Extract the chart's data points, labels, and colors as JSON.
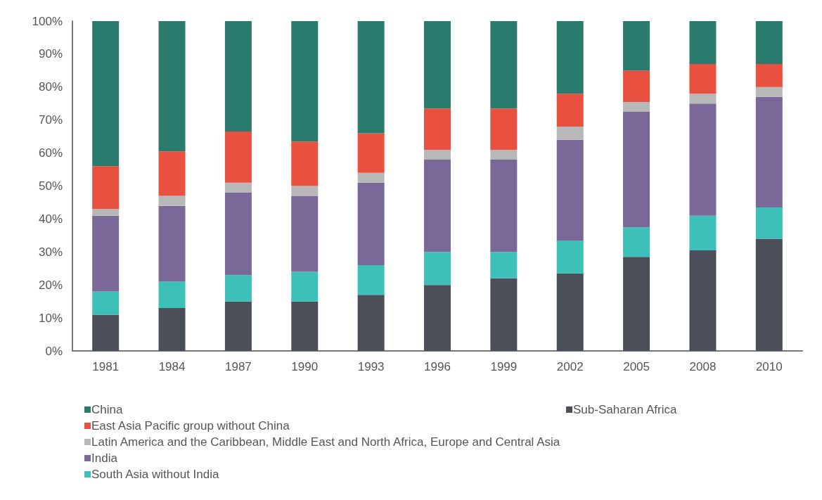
{
  "chart_data": {
    "type": "bar",
    "stacked": true,
    "categories": [
      "1981",
      "1984",
      "1987",
      "1990",
      "1993",
      "1996",
      "1999",
      "2002",
      "2005",
      "2008",
      "2010"
    ],
    "series": [
      {
        "name": "Sub-Saharan Africa",
        "color": "#4a4f5a",
        "values": [
          11,
          13,
          15,
          15,
          17,
          20,
          22,
          23.5,
          28.5,
          30.5,
          34
        ]
      },
      {
        "name": "South Asia without India",
        "color": "#3cc0b8",
        "values": [
          7,
          8,
          8,
          9,
          9,
          10,
          8,
          10,
          9,
          10.5,
          9.5
        ]
      },
      {
        "name": "India",
        "color": "#7a6899",
        "values": [
          23,
          23,
          25,
          23,
          25,
          28,
          28,
          30.5,
          35,
          34,
          33.5
        ]
      },
      {
        "name": "Latin America and the Caribbean, Middle East and North Africa, Europe and Central Asia",
        "color": "#b8b8b8",
        "values": [
          2,
          3,
          3,
          3,
          3,
          3,
          3,
          4,
          3,
          3,
          3
        ]
      },
      {
        "name": "East Asia Pacific group without China",
        "color": "#e8503f",
        "values": [
          13,
          13.5,
          15.5,
          13.5,
          12,
          12.5,
          12.5,
          10,
          9.5,
          9,
          7
        ]
      },
      {
        "name": "China",
        "color": "#2a7a6e",
        "values": [
          44,
          39.5,
          33.5,
          36.5,
          34,
          26.5,
          26.5,
          22,
          15,
          13,
          13
        ]
      }
    ],
    "ylim": [
      0,
      100
    ],
    "yticks": [
      {
        "value": 0,
        "label": "0%"
      },
      {
        "value": 10,
        "label": "10%"
      },
      {
        "value": 20,
        "label": "20%"
      },
      {
        "value": 30,
        "label": "30%"
      },
      {
        "value": 40,
        "label": "40%"
      },
      {
        "value": 50,
        "label": "50%"
      },
      {
        "value": 60,
        "label": "60%"
      },
      {
        "value": 70,
        "label": "70%"
      },
      {
        "value": 80,
        "label": "80%"
      },
      {
        "value": 90,
        "label": "90%"
      },
      {
        "value": 100,
        "label": "100%"
      }
    ],
    "grid": false,
    "legend": "bottom left"
  }
}
